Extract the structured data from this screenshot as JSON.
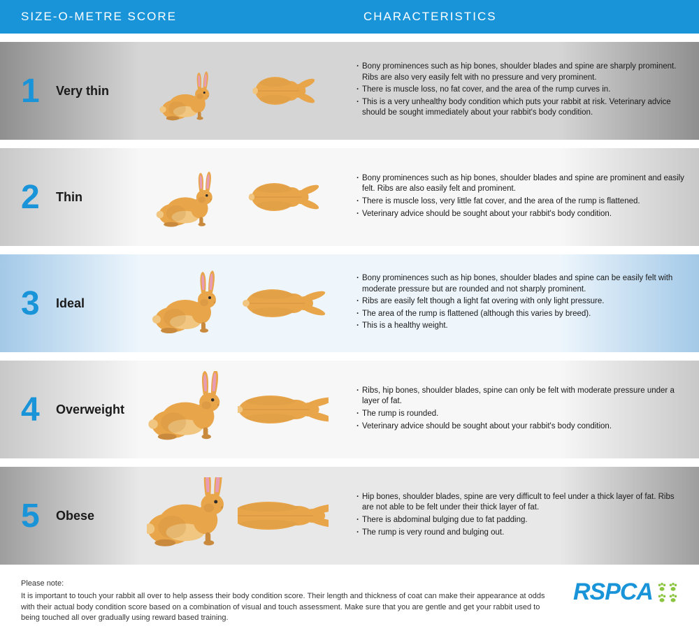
{
  "header": {
    "left": "SIZE-O-METRE SCORE",
    "right": "CHARACTERISTICS"
  },
  "colors": {
    "brand_blue": "#1a94d9",
    "brand_green": "#8bc53f",
    "rabbit_body": "#e8a54a",
    "rabbit_dark": "#c98a3d",
    "rabbit_ear_inner": "#e89bb5",
    "rabbit_belly": "#f0c680"
  },
  "rows": [
    {
      "score": "1",
      "label": "Very thin",
      "rabbit_scale": 0.78,
      "top_scale_x": 0.75,
      "bullets": [
        "Bony prominences such as hip bones, shoulder blades and spine are sharply prominent. Ribs are also very easily felt with no pressure and very prominent.",
        "There is muscle loss, no fat cover, and the area of the rump curves in.",
        "This is a very unhealthy body condition which puts your rabbit at risk. Veterinary advice should be sought immediately about your rabbit's body condition."
      ]
    },
    {
      "score": "2",
      "label": "Thin",
      "rabbit_scale": 0.88,
      "top_scale_x": 0.85,
      "bullets": [
        "Bony prominences such as hip bones, shoulder blades and spine are prominent and easily felt. Ribs are also easily felt and prominent.",
        "There is muscle loss, very little fat cover, and the area of the rump is flattened.",
        "Veterinary advice should be sought about your rabbit's body condition."
      ]
    },
    {
      "score": "3",
      "label": "Ideal",
      "rabbit_scale": 1.0,
      "top_scale_x": 1.0,
      "bullets": [
        "Bony prominences such as hip bones, shoulder blades and spine can be easily felt with moderate pressure but are rounded and not sharply prominent.",
        "Ribs are easily felt though a light fat overing with only light pressure.",
        "The area of the rump is flattened (although this varies by breed).",
        "This is a healthy weight."
      ]
    },
    {
      "score": "4",
      "label": "Overweight",
      "rabbit_scale": 1.12,
      "top_scale_x": 1.2,
      "bullets": [
        "Ribs, hip bones, shoulder blades, spine can only be felt with moderate pressure under a layer of fat.",
        "The rump is rounded.",
        "Veterinary advice should be sought about your rabbit's body condition."
      ]
    },
    {
      "score": "5",
      "label": "Obese",
      "rabbit_scale": 1.25,
      "top_scale_x": 1.4,
      "bullets": [
        "Hip bones, shoulder blades, spine are very difficult to feel under a thick layer of fat. Ribs are not able to be felt under their thick layer of fat.",
        "There is abdominal bulging due to fat padding.",
        "The rump is very round and bulging out."
      ]
    }
  ],
  "footer": {
    "note_label": "Please note:",
    "note_text": "It is important to touch your rabbit all over to help assess their body condition score. Their length and thickness of coat can make their appearance at odds with their actual body condition score based on a combination of visual and touch assessment. Make sure that you are gentle and get your rabbit used to being touched all over gradually using reward based training.",
    "logo_text": "RSPCA"
  }
}
